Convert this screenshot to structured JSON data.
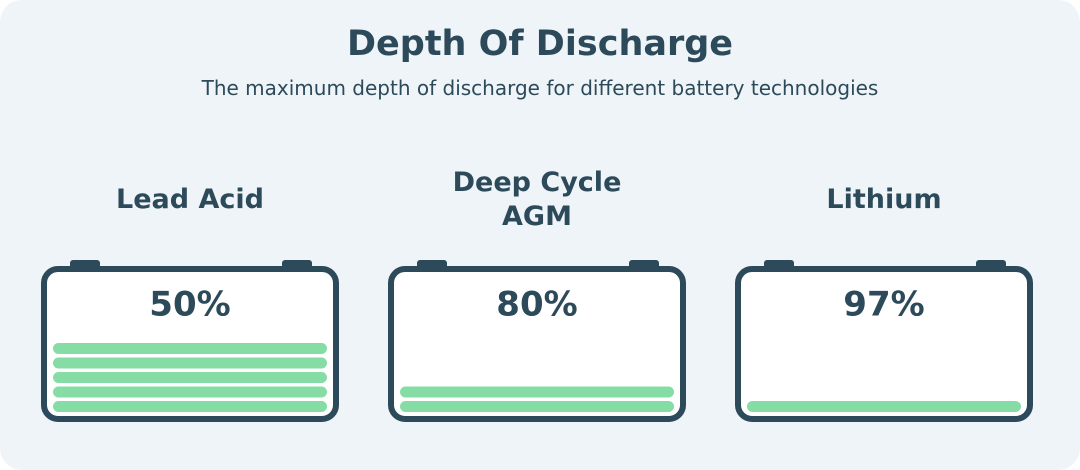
{
  "header": {
    "title": "Depth Of Discharge",
    "subtitle": "The maximum depth of discharge for different battery technologies"
  },
  "batteries": [
    {
      "name": "Lead Acid",
      "depth": {
        "value": 50,
        "label": "50%"
      }
    },
    {
      "name": "Deep Cycle AGM",
      "depth": {
        "value": 80,
        "label": "80%"
      }
    },
    {
      "name": "Lithium",
      "depth": {
        "value": 97,
        "label": "97%"
      }
    }
  ]
}
